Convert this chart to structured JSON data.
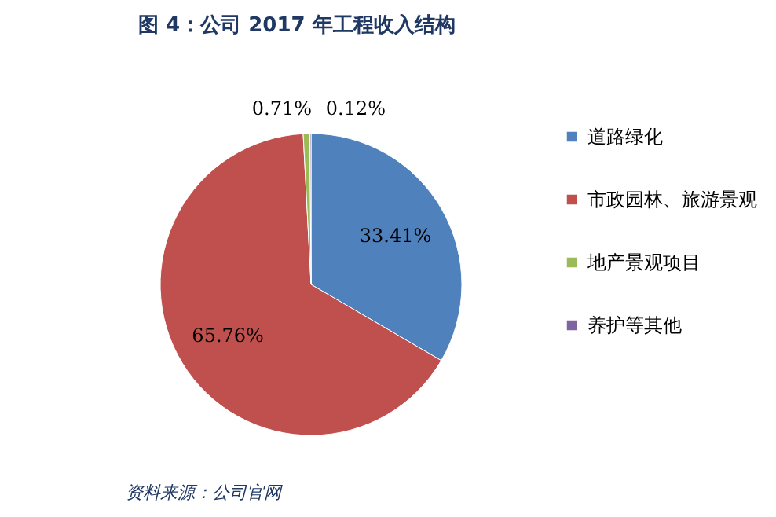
{
  "chart_data": {
    "type": "pie",
    "title": "图 4：公司 2017 年工程收入结构",
    "categories": [
      "道路绿化",
      "市政园林、旅游景观",
      "地产景观项目",
      "养护等其他"
    ],
    "values": [
      33.41,
      65.76,
      0.71,
      0.12
    ],
    "colors": [
      "#4f81bd",
      "#c0504d",
      "#9bbb59",
      "#8064a2"
    ],
    "value_labels": [
      "33.41%",
      "65.76%",
      "0.71%",
      "0.12%"
    ],
    "legend": "right",
    "annotations": [
      "资料来源：公司官网"
    ]
  }
}
